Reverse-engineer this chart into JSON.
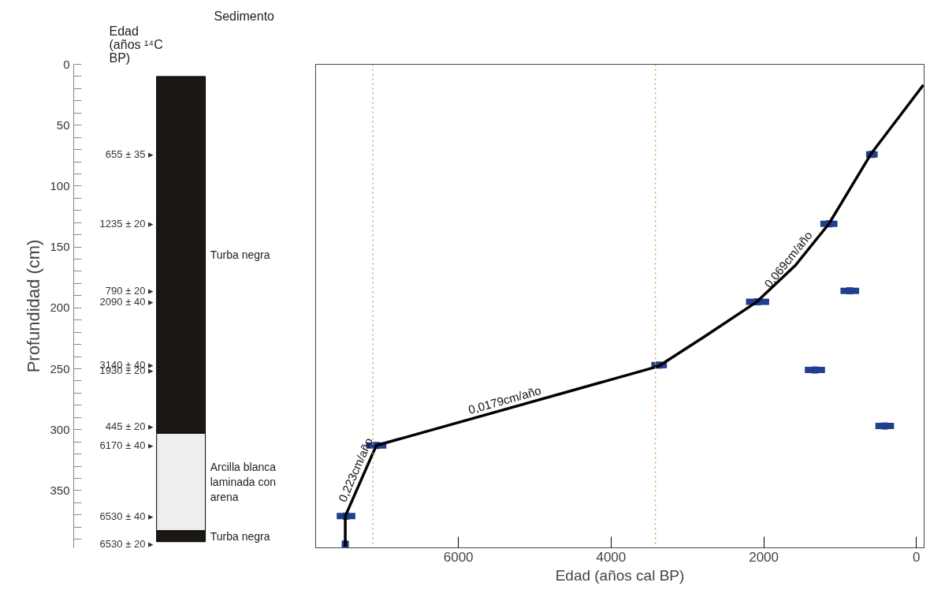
{
  "chart_data": [
    {
      "type": "bar",
      "categories": [
        null
      ],
      "ylim": [
        397,
        0
      ],
      "ylabel": "Profundidad (cm)",
      "tick_labels": "y",
      "grid": false,
      "legend": "right",
      "yticks": [
        0,
        50,
        100,
        150,
        200,
        250,
        300,
        350
      ],
      "series": [
        {
          "name": "Turba negra",
          "color": "#1a1714",
          "values": [
            293
          ],
          "base": [
            10
          ]
        },
        {
          "name": "Arcilla blanca laminada con arena",
          "color": "#eeeeee",
          "values": [
            80
          ],
          "base": [
            303
          ]
        },
        {
          "name": "Turba negra",
          "color": "#1a1714",
          "values": [
            9
          ],
          "base": [
            383
          ]
        }
      ],
      "annotations": [
        "Edad (años ¹⁴C BP)",
        "Sedimento",
        "655 ± 35 ▸",
        "1235 ± 20 ▸",
        "790 ± 20 ▸",
        "2090 ± 40 ▸",
        "3140 ± 40 ▸",
        "1930 ± 20 ▸",
        "445 ± 20 ▸",
        "6170 ± 40 ▸",
        "6530 ± 40 ▸",
        "6530 ± 20 ▸"
      ]
    },
    {
      "type": "line",
      "xlim": [
        7870,
        -100
      ],
      "xticks": [
        6000,
        4000,
        2000,
        0
      ],
      "xlabel": "Edad (años cal BP)",
      "ylim": [
        397,
        0
      ],
      "tick_labels": "x",
      "grid": false,
      "series": [
        {
          "type": "line",
          "color": "#000000",
          "x": [
            -90,
            589,
            1147,
            1584,
            2091,
            2761,
            3381,
            7076,
            7482,
            7482
          ],
          "values": [
            17,
            73,
            131,
            165,
            195,
            223,
            248,
            313,
            371,
            396
          ]
        },
        {
          "type": "scatter",
          "marker": "square",
          "color": "#223f8f",
          "x": [
            584,
            1147,
            873,
            2081,
            3371,
            1330,
            416,
            7076,
            7472,
            7482
          ],
          "values": [
            74,
            131,
            186,
            195,
            247,
            251,
            297,
            313,
            371,
            394
          ],
          "xerrors": [
            76,
            112,
            122,
            152,
            102,
            132,
            122,
            132,
            122,
            41
          ]
        }
      ],
      "ref_lines": [
        {
          "axis": "x",
          "value": 7120,
          "color": "#d9a066",
          "line_style": "dotted"
        },
        {
          "axis": "x",
          "value": 3420,
          "color": "#d9a066",
          "line_style": "dotted"
        }
      ],
      "annotations": [
        {
          "text": "0,0179cm/año",
          "x": 5360,
          "y": 283
        },
        {
          "text": "0,069cm/año",
          "x": 1584,
          "y": 165
        },
        {
          "text": "0,223cm/año",
          "x": 7237,
          "y": 336
        }
      ]
    }
  ]
}
